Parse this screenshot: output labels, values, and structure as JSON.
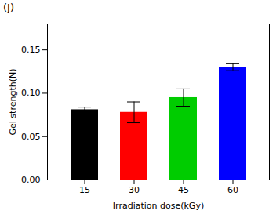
{
  "chart_data": {
    "type": "bar",
    "title": "(J)",
    "categories": [
      "15",
      "30",
      "45",
      "60"
    ],
    "values": [
      0.081,
      0.078,
      0.095,
      0.13
    ],
    "errors": [
      0.003,
      0.012,
      0.01,
      0.004
    ],
    "colors": [
      "#000000",
      "#ff0000",
      "#00cc00",
      "#0000ff"
    ],
    "xlabel": "Irradiation dose(kGy)",
    "ylabel": "Gel strength(N)",
    "ylim": [
      0.0,
      0.18
    ],
    "yticks": [
      {
        "value": 0.0,
        "label": "0.00"
      },
      {
        "value": 0.05,
        "label": "0.05"
      },
      {
        "value": 0.1,
        "label": "0.10"
      },
      {
        "value": 0.15,
        "label": "0.15"
      }
    ],
    "grid": false
  }
}
